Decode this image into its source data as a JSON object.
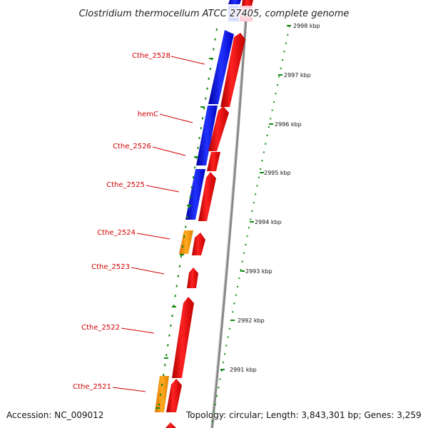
{
  "title": "Clostridium thermocellum ATCC 27405, complete genome",
  "footer": {
    "accession": "Accession: NC_009012",
    "topology": "Topology: circular; Length: 3,843,301 bp; Genes: 3,259"
  },
  "ticks": [
    "2998 kbp",
    "2997 kbp",
    "2996 kbp",
    "2995 kbp",
    "2994 kbp",
    "2993 kbp",
    "2992 kbp",
    "2991 kbp"
  ],
  "gene_labels": [
    "Cthe_2528",
    "hemC",
    "Cthe_2526",
    "Cthe_2525",
    "Cthe_2524",
    "Cthe_2523",
    "Cthe_2522",
    "Cthe_2521"
  ],
  "colors": {
    "forward_cds": "#ee1111",
    "reverse_cds": "#1111ee",
    "orange_feature": "#ff9900",
    "backbone": "#999999",
    "label": "#d10000",
    "ruler": "#118811"
  }
}
